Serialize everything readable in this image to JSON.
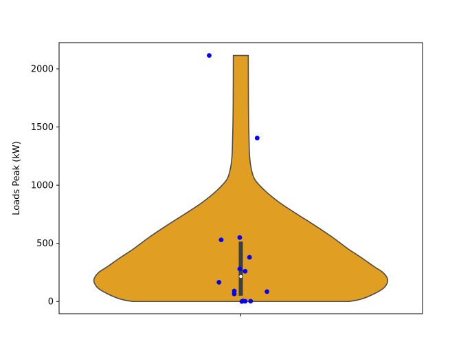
{
  "chart_data": {
    "type": "violin",
    "title": "",
    "xlabel": "",
    "ylabel": "Loads Peak (kW)",
    "ylim": [
      -105,
      2225
    ],
    "yticks": [
      0,
      500,
      1000,
      1500,
      2000
    ],
    "ytick_labels": [
      "0",
      "500",
      "1000",
      "1500",
      "2000"
    ],
    "grid": false,
    "violin_color": "#e09e22",
    "violin_edge_color": "#4a4a4a",
    "box_color": "#3f3f3f",
    "median_color": "#ffffff",
    "point_color": "#0000ff",
    "violin": {
      "clip_min": 0,
      "clip_max": 2115,
      "max_half_width_fraction": 0.806,
      "density": [
        {
          "y": 0,
          "w": 0.738
        },
        {
          "y": 20,
          "w": 0.82
        },
        {
          "y": 60,
          "w": 0.9
        },
        {
          "y": 110,
          "w": 0.97
        },
        {
          "y": 160,
          "w": 1.0
        },
        {
          "y": 200,
          "w": 1.0
        },
        {
          "y": 250,
          "w": 0.97
        },
        {
          "y": 300,
          "w": 0.91
        },
        {
          "y": 380,
          "w": 0.82
        },
        {
          "y": 450,
          "w": 0.735
        },
        {
          "y": 550,
          "w": 0.628
        },
        {
          "y": 650,
          "w": 0.51
        },
        {
          "y": 750,
          "w": 0.385
        },
        {
          "y": 850,
          "w": 0.265
        },
        {
          "y": 950,
          "w": 0.167
        },
        {
          "y": 1050,
          "w": 0.095
        },
        {
          "y": 1150,
          "w": 0.07
        },
        {
          "y": 1250,
          "w": 0.06
        },
        {
          "y": 1350,
          "w": 0.057
        },
        {
          "y": 1500,
          "w": 0.054
        },
        {
          "y": 1700,
          "w": 0.052
        },
        {
          "y": 2115,
          "w": 0.051
        }
      ]
    },
    "box": {
      "q1": 50,
      "median": 215,
      "q3": 515
    },
    "points": [
      {
        "x": -0.29,
        "y": 2115
      },
      {
        "x": 0.15,
        "y": 1405
      },
      {
        "x": -0.01,
        "y": 550
      },
      {
        "x": -0.18,
        "y": 530
      },
      {
        "x": 0.08,
        "y": 380
      },
      {
        "x": -0.01,
        "y": 280
      },
      {
        "x": 0.04,
        "y": 260
      },
      {
        "x": -0.2,
        "y": 165
      },
      {
        "x": -0.06,
        "y": 90
      },
      {
        "x": 0.24,
        "y": 85
      },
      {
        "x": -0.06,
        "y": 65
      },
      {
        "x": 0.02,
        "y": 5
      },
      {
        "x": 0.09,
        "y": 3
      },
      {
        "x": 0.04,
        "y": 2
      },
      {
        "x": 0.01,
        "y": 0
      }
    ]
  }
}
